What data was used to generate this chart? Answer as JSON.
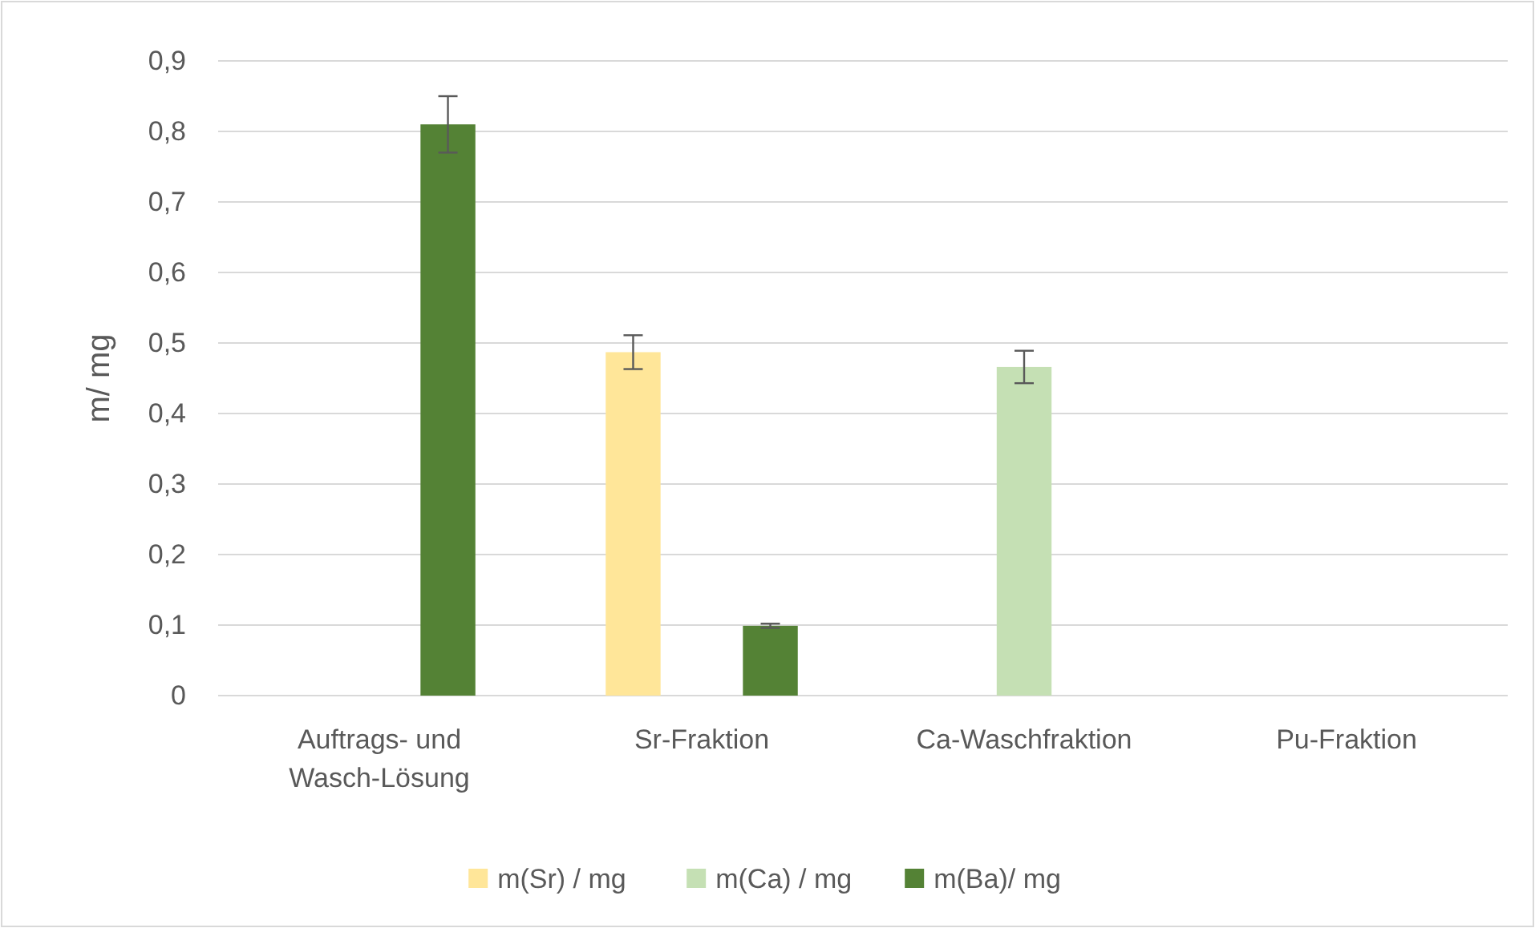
{
  "chart_data": {
    "type": "bar",
    "ylabel": "m/ mg",
    "categories": [
      "Auftrags- und Wasch-Lösung",
      "Sr-Fraktion",
      "Ca-Waschfraktion",
      "Pu-Fraktion"
    ],
    "series": [
      {
        "name": "m(Sr) / mg",
        "color": "#ffe699",
        "values": [
          0,
          0.487,
          0,
          0
        ],
        "errors": [
          null,
          0.024,
          null,
          null
        ]
      },
      {
        "name": "m(Ca) / mg",
        "color": "#c5e0b4",
        "values": [
          0,
          0,
          0.466,
          0
        ],
        "errors": [
          null,
          null,
          0.023,
          null
        ]
      },
      {
        "name": "m(Ba)/ mg",
        "color": "#548235",
        "values": [
          0.81,
          0.099,
          0,
          0
        ],
        "errors": [
          0.04,
          0.003,
          null,
          null
        ]
      }
    ],
    "ylim": [
      0,
      0.9
    ],
    "yticks": [
      {
        "value": 0,
        "label": "0"
      },
      {
        "value": 0.1,
        "label": "0,1"
      },
      {
        "value": 0.2,
        "label": "0,2"
      },
      {
        "value": 0.3,
        "label": "0,3"
      },
      {
        "value": 0.4,
        "label": "0,4"
      },
      {
        "value": 0.5,
        "label": "0,5"
      },
      {
        "value": 0.6,
        "label": "0,6"
      },
      {
        "value": 0.7,
        "label": "0,7"
      },
      {
        "value": 0.8,
        "label": "0,8"
      },
      {
        "value": 0.9,
        "label": "0,9"
      }
    ],
    "grid": "y",
    "legend": "bottom"
  }
}
